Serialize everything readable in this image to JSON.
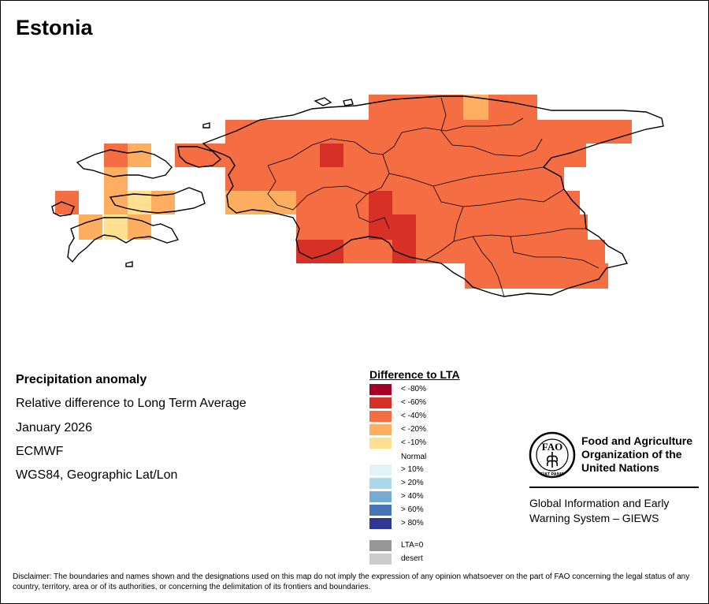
{
  "title": "Estonia",
  "info": {
    "heading": "Precipitation anomaly",
    "subtitle": "Relative difference to Long Term Average",
    "period": "January 2026",
    "source": "ECMWF",
    "projection": "WGS84, Geographic Lat/Lon"
  },
  "legend": {
    "title": "Difference to LTA",
    "items": [
      {
        "label": "< -80%",
        "color": "#a50026"
      },
      {
        "label": "< -60%",
        "color": "#d73027"
      },
      {
        "label": "< -40%",
        "color": "#f46d43"
      },
      {
        "label": "< -20%",
        "color": "#fdae61"
      },
      {
        "label": "< -10%",
        "color": "#fee090"
      },
      {
        "label": "> 10%",
        "color": "#e0f3f8"
      },
      {
        "label": "> 20%",
        "color": "#abd9e9"
      },
      {
        "label": "> 40%",
        "color": "#74add1"
      },
      {
        "label": "> 60%",
        "color": "#4575b4"
      },
      {
        "label": "> 80%",
        "color": "#313695"
      },
      {
        "label": "LTA=0",
        "color": "#969696"
      },
      {
        "label": "desert",
        "color": "#cccccc"
      }
    ],
    "normal_label": "Normal"
  },
  "fao": {
    "name_line1": "Food and Agriculture",
    "name_line2": "Organization of the",
    "name_line3": "United Nations",
    "logo_letters": "FAO",
    "logo_motto": "FIAT PANIS",
    "giews_line1": "Global Information and Early",
    "giews_line2": "Warning System – GIEWS"
  },
  "disclaimer": "Disclaimer: The boundaries and names shown and the designations used on this map do not imply the expression of any opinion whatsoever on the part of FAO concerning the legal status of any country, territory, area or of its authorities, or concerning the delimitation of its frontiers and boundaries."
}
